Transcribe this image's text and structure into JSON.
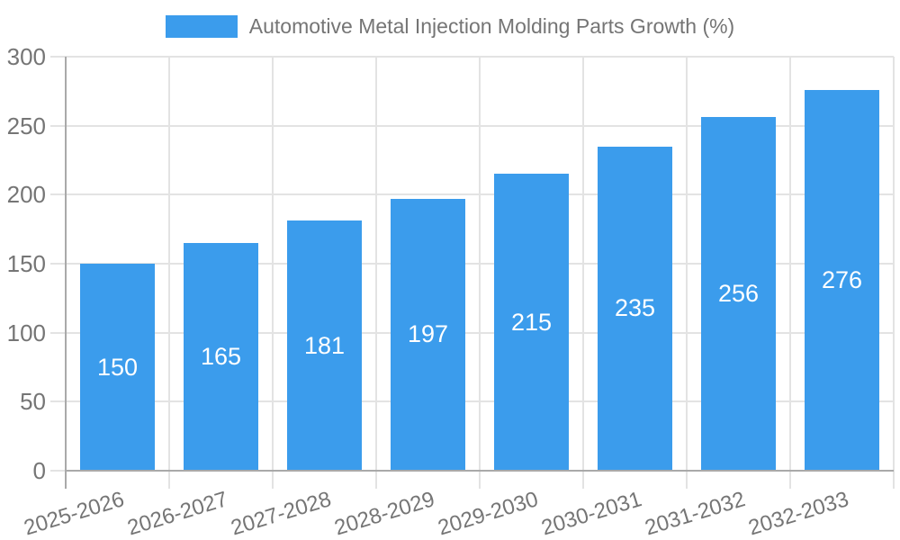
{
  "legend": {
    "label": "Automotive Metal Injection Molding Parts Growth (%)"
  },
  "colors": {
    "bar": "#3B9CEC",
    "grid": "#E3E3E3",
    "axis": "#A9A9A9",
    "label_text": "#757575",
    "value_text": "#FFFFFF",
    "background": "#FFFFFF"
  },
  "chart_data": {
    "type": "bar",
    "title": "Automotive Metal Injection Molding Parts Growth (%)",
    "categories": [
      "2025-2026",
      "2026-2027",
      "2027-2028",
      "2028-2029",
      "2029-2030",
      "2030-2031",
      "2031-2032",
      "2032-2033"
    ],
    "values": [
      150,
      165,
      181,
      197,
      215,
      235,
      256,
      276
    ],
    "xlabel": "",
    "ylabel": "",
    "ylim": [
      0,
      300
    ],
    "yticks": [
      0,
      50,
      100,
      150,
      200,
      250,
      300
    ],
    "grid": true,
    "legend_position": "top",
    "value_labels": "inside-center",
    "bar_color": "#3B9CEC",
    "x_label_rotation_deg": -17
  }
}
